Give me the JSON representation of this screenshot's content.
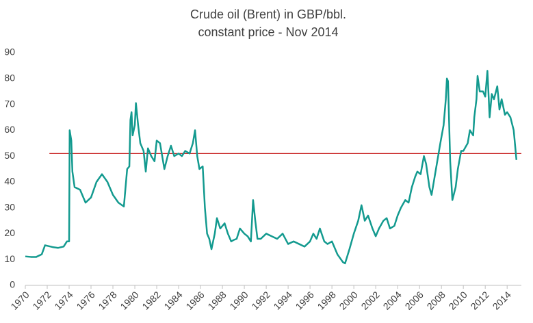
{
  "chart_data": {
    "type": "line",
    "title": [
      "Crude oil (Brent) in GBP/bbl.",
      "constant price - Nov 2014"
    ],
    "x": [
      1970,
      1970.5,
      1971,
      1971.5,
      1971.8,
      1972.5,
      1973,
      1973.5,
      1973.8,
      1974,
      1974.05,
      1974.2,
      1974.3,
      1974.5,
      1975,
      1975.5,
      1976,
      1976.5,
      1977,
      1977.5,
      1978,
      1978.5,
      1979,
      1979.3,
      1979.5,
      1979.6,
      1979.7,
      1979.8,
      1980,
      1980.1,
      1980.3,
      1980.5,
      1980.8,
      1981,
      1981.2,
      1981.5,
      1981.8,
      1982,
      1982.3,
      1982.5,
      1982.7,
      1983,
      1983.3,
      1983.6,
      1984,
      1984.3,
      1984.6,
      1985,
      1985.3,
      1985.5,
      1985.7,
      1985.9,
      1986.2,
      1986.4,
      1986.6,
      1986.8,
      1987,
      1987.3,
      1987.5,
      1987.8,
      1988.2,
      1988.5,
      1988.8,
      1989,
      1989.3,
      1989.6,
      1990,
      1990.3,
      1990.6,
      1990.8,
      1991,
      1991.2,
      1991.5,
      1992,
      1992.5,
      1993,
      1993.5,
      1994,
      1994.5,
      1995,
      1995.5,
      1996,
      1996.3,
      1996.6,
      1996.9,
      1997.3,
      1997.6,
      1998,
      1998.5,
      1999,
      1999.2,
      1999.6,
      2000,
      2000.4,
      2000.7,
      2001,
      2001.3,
      2001.7,
      2002,
      2002.3,
      2002.7,
      2003,
      2003.3,
      2003.7,
      2004,
      2004.3,
      2004.7,
      2005,
      2005.3,
      2005.6,
      2005.8,
      2006.1,
      2006.4,
      2006.6,
      2006.9,
      2007.1,
      2007.5,
      2007.9,
      2008.2,
      2008.4,
      2008.5,
      2008.6,
      2008.8,
      2009,
      2009.3,
      2009.5,
      2009.8,
      2010,
      2010.4,
      2010.6,
      2010.9,
      2011,
      2011.2,
      2011.3,
      2011.5,
      2011.8,
      2012,
      2012.2,
      2012.4,
      2012.6,
      2012.8,
      2013.1,
      2013.3,
      2013.5,
      2013.8,
      2014,
      2014.3,
      2014.6,
      2014.85
    ],
    "values": [
      11.2,
      11,
      11,
      12,
      15.5,
      14.8,
      14.5,
      15,
      17,
      17,
      60,
      56,
      44,
      38,
      37,
      32,
      34,
      40,
      43,
      40,
      35,
      32,
      30.5,
      45,
      46,
      64,
      67,
      58,
      62,
      70.5,
      62,
      55,
      52,
      44,
      53,
      50,
      48,
      56,
      55,
      50,
      45,
      50,
      54,
      50,
      51,
      50,
      52,
      51,
      55,
      60,
      50,
      45,
      46,
      30,
      20,
      18,
      14,
      20,
      26,
      22,
      24,
      20,
      17,
      17.5,
      18,
      22,
      20,
      19,
      17,
      33,
      25,
      18,
      18,
      20,
      19,
      18,
      20,
      16,
      17,
      16,
      15,
      17,
      20,
      18,
      22,
      17,
      16,
      17,
      12,
      9,
      8.5,
      14,
      20,
      25,
      31,
      25,
      27,
      22,
      19,
      22,
      25,
      26,
      22,
      23,
      27,
      30,
      33,
      32,
      38,
      42,
      44,
      43,
      50,
      47,
      38,
      35,
      45,
      55,
      62,
      72,
      80,
      79,
      48,
      33,
      38,
      45,
      52,
      52,
      55,
      60,
      58,
      65,
      72,
      81,
      75,
      75,
      73,
      83,
      65,
      74,
      72,
      77,
      68,
      72,
      66,
      67,
      65,
      60,
      48.5
    ],
    "color": "#139a8f",
    "xlim": [
      1970,
      2015.3
    ],
    "ylim": [
      0,
      90
    ],
    "xticks": [
      1970,
      1972,
      1974,
      1976,
      1978,
      1980,
      1982,
      1984,
      1986,
      1988,
      1990,
      1992,
      1994,
      1996,
      1998,
      2000,
      2002,
      2004,
      2006,
      2008,
      2010,
      2012,
      2014
    ],
    "yticks": [
      0,
      10,
      20,
      30,
      40,
      50,
      60,
      70,
      80,
      90
    ],
    "grid": false,
    "reference_line": {
      "value": 51,
      "x_start": 1972.2,
      "color": "#c00000"
    }
  }
}
